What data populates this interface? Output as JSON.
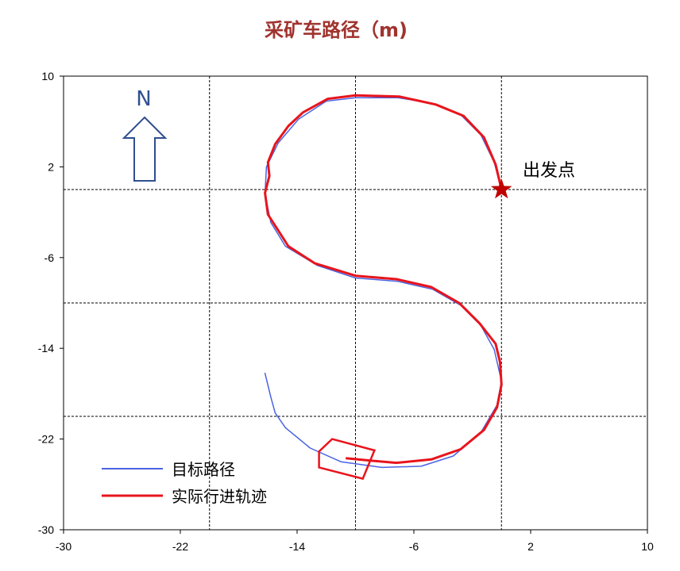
{
  "chart_data": {
    "type": "line",
    "title": "采矿车路径（m)",
    "xlim": [
      -30,
      10
    ],
    "ylim": [
      -30,
      10
    ],
    "xticks": [
      -30,
      -22,
      -14,
      -6,
      2,
      10
    ],
    "yticks": [
      -30,
      -22,
      -14,
      -6,
      2,
      10
    ],
    "grid": {
      "on": true,
      "style": "dashed",
      "x": [
        -20,
        -10,
        0
      ],
      "y": [
        -20,
        -10,
        0
      ]
    },
    "legend_placement": "bottom-left",
    "series": [
      {
        "name": "目标路径",
        "color": "#4a63e0",
        "points": [
          [
            0,
            0
          ],
          [
            -0.5,
            2.4
          ],
          [
            -1.4,
            4.8
          ],
          [
            -2.8,
            6.6
          ],
          [
            -4.7,
            7.6
          ],
          [
            -7.1,
            8.1
          ],
          [
            -10,
            8.1
          ],
          [
            -12,
            7.8
          ],
          [
            -13.9,
            6.2
          ],
          [
            -15.3,
            4.1
          ],
          [
            -16.1,
            2
          ],
          [
            -16.2,
            -0.4
          ],
          [
            -15.8,
            -2.9
          ],
          [
            -14.8,
            -5
          ],
          [
            -12.6,
            -6.7
          ],
          [
            -10,
            -7.8
          ],
          [
            -7.1,
            -8.1
          ],
          [
            -4.7,
            -8.8
          ],
          [
            -2.8,
            -10.2
          ],
          [
            -1.4,
            -12
          ],
          [
            -0.5,
            -14.1
          ],
          [
            0,
            -16.9
          ],
          [
            -0.3,
            -19
          ],
          [
            -1.4,
            -21.4
          ],
          [
            -3.3,
            -23.5
          ],
          [
            -5.5,
            -24.4
          ],
          [
            -8.2,
            -24.5
          ],
          [
            -11,
            -24
          ],
          [
            -13.1,
            -22.8
          ],
          [
            -14.8,
            -21
          ],
          [
            -15.5,
            -19.7
          ],
          [
            -15.8,
            -18.3
          ],
          [
            -16.2,
            -16.2
          ]
        ]
      },
      {
        "name": "实际行进轨迹",
        "color": "#e8141c",
        "points": [
          [
            0,
            0
          ],
          [
            -0.4,
            2.2
          ],
          [
            -1.2,
            4.6
          ],
          [
            -2.6,
            6.5
          ],
          [
            -4.5,
            7.5
          ],
          [
            -7,
            8.2
          ],
          [
            -10,
            8.3
          ],
          [
            -11.9,
            8.0
          ],
          [
            -13.6,
            6.8
          ],
          [
            -14.6,
            5.6
          ],
          [
            -15.5,
            4.0
          ],
          [
            -16.0,
            2.4
          ],
          [
            -15.9,
            1.2
          ],
          [
            -16.2,
            -0.3
          ],
          [
            -16.0,
            -2.2
          ],
          [
            -15.4,
            -3.4
          ],
          [
            -14.6,
            -5.0
          ],
          [
            -12.8,
            -6.5
          ],
          [
            -10.0,
            -7.6
          ],
          [
            -7.2,
            -7.9
          ],
          [
            -4.8,
            -8.6
          ],
          [
            -2.9,
            -10.0
          ],
          [
            -1.5,
            -11.8
          ],
          [
            -0.4,
            -13.6
          ],
          [
            -0.1,
            -15.2
          ],
          [
            0,
            -17.2
          ],
          [
            -0.3,
            -19.2
          ],
          [
            -1.2,
            -21.2
          ],
          [
            -2.8,
            -22.9
          ],
          [
            -4.8,
            -23.8
          ],
          [
            -7.2,
            -24.1
          ],
          [
            -9.0,
            -23.9
          ],
          [
            -10.6,
            -23.7
          ]
        ]
      },
      {
        "name": "",
        "color": "#e8141c",
        "shape": "vehicle-polygon",
        "points": [
          [
            -11.6,
            -22.0
          ],
          [
            -8.7,
            -23.0
          ],
          [
            -9.5,
            -25.5
          ],
          [
            -12.5,
            -24.5
          ],
          [
            -12.5,
            -23.1
          ]
        ]
      }
    ],
    "annotations": [
      {
        "text": "出发点",
        "marker": "star",
        "color": "#c00000",
        "x": 0,
        "y": 0
      },
      {
        "text": "N",
        "marker": "north-arrow",
        "color": "#2f4f8f"
      }
    ]
  }
}
